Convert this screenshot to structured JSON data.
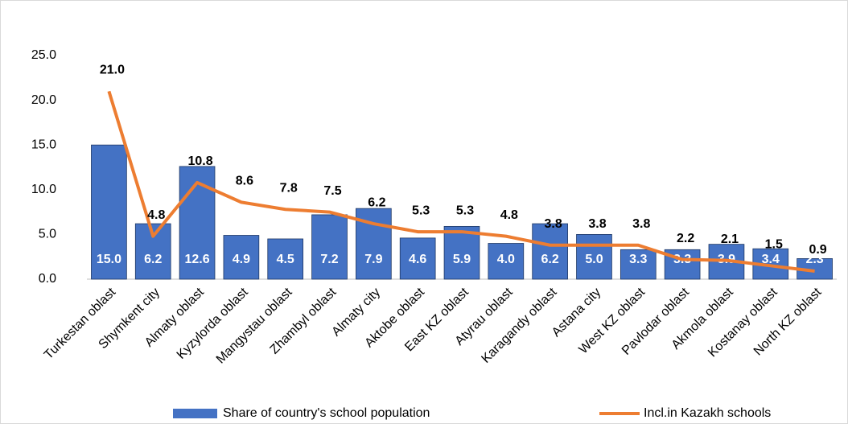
{
  "chart_data": {
    "type": "bar",
    "categories": [
      "Turkestan oblast",
      "Shymkent city",
      "Almaty oblast",
      "Kyzylorda oblast",
      "Mangystau oblast",
      "Zhambyl oblast",
      "Almaty city",
      "Aktobe oblast",
      "East KZ oblast",
      "Atyrau oblast",
      "Karagandy oblast",
      "Astana city",
      "West KZ oblast",
      "Pavlodar oblast",
      "Akmola oblast",
      "Kostanay  oblast",
      "North KZ oblast"
    ],
    "series": [
      {
        "name": "Share of country's school population",
        "type": "bar",
        "color": "#4472c4",
        "values": [
          15.0,
          6.2,
          12.6,
          4.9,
          4.5,
          7.2,
          7.9,
          4.6,
          5.9,
          4.0,
          6.2,
          5.0,
          3.3,
          3.3,
          3.9,
          3.4,
          2.3
        ],
        "value_labels": [
          "15.0",
          "6.2",
          "12.6",
          "4.9",
          "4.5",
          "7.2",
          "7.9",
          "4.6",
          "5.9",
          "4.0",
          "6.2",
          "5.0",
          "3.3",
          "3.3",
          "3.9",
          "3.4",
          "2.3"
        ]
      },
      {
        "name": "Incl.in Kazakh schools",
        "type": "line",
        "color": "#ed7d31",
        "values": [
          21.0,
          4.8,
          10.8,
          8.6,
          7.8,
          7.5,
          6.2,
          5.3,
          5.3,
          4.8,
          3.8,
          3.8,
          3.8,
          2.2,
          2.1,
          1.5,
          0.9
        ],
        "value_labels": [
          "21.0",
          "4.8",
          "10.8",
          "8.6",
          "7.8",
          "7.5",
          "6.2",
          "5.3",
          "5.3",
          "4.8",
          "3.8",
          "3.8",
          "3.8",
          "2.2",
          "2.1",
          "1.5",
          "0.9"
        ]
      }
    ],
    "ylim": [
      0,
      25
    ],
    "yticks": [
      {
        "value": 0,
        "label": "0.0"
      },
      {
        "value": 5,
        "label": "5.0"
      },
      {
        "value": 10,
        "label": "10.0"
      },
      {
        "value": 15,
        "label": "15.0"
      },
      {
        "value": 20,
        "label": "20.0"
      },
      {
        "value": 25,
        "label": "25.0"
      }
    ],
    "grid": false,
    "legend": "bottom"
  }
}
